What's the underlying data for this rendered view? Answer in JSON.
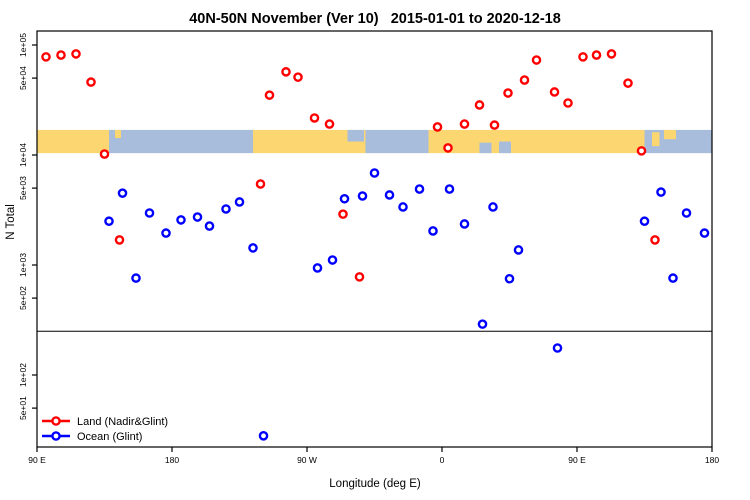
{
  "colors": {
    "land": "#FF0000",
    "ocean": "#0000FF",
    "map_land": "#FBD671",
    "map_ocean": "#A8BCDC",
    "frame": "#000000",
    "background": "#FFFFFF"
  },
  "chart_data": {
    "type": "scatter",
    "title": "40N-50N November (Ver 10)   2015-01-01 to 2020-12-18",
    "xlabel": "Longitude (deg E)",
    "ylabel": "N Total",
    "y_scale": "log",
    "x_domain_unwrapped": [
      90,
      540
    ],
    "x_wraps_at": 360,
    "ylim": [
      22,
      134000
    ],
    "grid": false,
    "x_ticks": [
      {
        "lon": 90,
        "label": "90 E"
      },
      {
        "lon": 180,
        "label": "180"
      },
      {
        "lon": 270,
        "label": "90 W"
      },
      {
        "lon": 360,
        "label": "0"
      },
      {
        "lon": 450,
        "label": "90 E"
      },
      {
        "lon": 540,
        "label": "180"
      }
    ],
    "y_ticks": [
      {
        "value": 100000,
        "label": "1e+05"
      },
      {
        "value": 50000,
        "label": "5e+04"
      },
      {
        "value": 10000,
        "label": "1e+04"
      },
      {
        "value": 5000,
        "label": "5e+03"
      },
      {
        "value": 1000,
        "label": "1e+03"
      },
      {
        "value": 500,
        "label": "5e+02"
      },
      {
        "value": 100,
        "label": "1e+02"
      },
      {
        "value": 50,
        "label": "5e+01"
      }
    ],
    "divider_value": 250,
    "map_band": {
      "top_n": 16900,
      "bottom_n": 10400,
      "segments": [
        {
          "t": "land",
          "a": 90,
          "b": 138
        },
        {
          "t": "ocean",
          "a": 138,
          "b": 234
        },
        {
          "t": "land",
          "a": 234,
          "b": 309
        },
        {
          "t": "ocean",
          "a": 309,
          "b": 351
        },
        {
          "t": "land",
          "a": 351,
          "b": 495
        },
        {
          "t": "ocean",
          "a": 495,
          "b": 540
        }
      ],
      "patches": [
        {
          "t": "land",
          "a": 142,
          "b": 146,
          "y0": 0,
          "y1": 0.35
        },
        {
          "t": "ocean",
          "a": 297,
          "b": 308,
          "y0": 0,
          "y1": 0.5
        },
        {
          "t": "ocean",
          "a": 385,
          "b": 393,
          "y0": 0.55,
          "y1": 1
        },
        {
          "t": "ocean",
          "a": 398,
          "b": 406,
          "y0": 0.5,
          "y1": 1
        },
        {
          "t": "land",
          "a": 500,
          "b": 505,
          "y0": 0.1,
          "y1": 0.7
        },
        {
          "t": "land",
          "a": 508,
          "b": 516,
          "y0": 0,
          "y1": 0.4
        }
      ]
    },
    "series": [
      {
        "name": "Land (Nadir&Glint)",
        "color_key": "land",
        "points": [
          [
            96,
            78000
          ],
          [
            106,
            81000
          ],
          [
            116,
            83000
          ],
          [
            126,
            46000
          ],
          [
            135,
            10200
          ],
          [
            145,
            1690
          ],
          [
            239,
            5450
          ],
          [
            245,
            35000
          ],
          [
            256,
            57000
          ],
          [
            264,
            51000
          ],
          [
            275,
            21700
          ],
          [
            285,
            19100
          ],
          [
            294,
            2900
          ],
          [
            305,
            780
          ],
          [
            357,
            18000
          ],
          [
            364,
            11600
          ],
          [
            375,
            19100
          ],
          [
            385,
            28500
          ],
          [
            395,
            18700
          ],
          [
            404,
            36600
          ],
          [
            415,
            48000
          ],
          [
            423,
            73000
          ],
          [
            435,
            37400
          ],
          [
            444,
            29700
          ],
          [
            454,
            78000
          ],
          [
            463,
            81000
          ],
          [
            473,
            83000
          ],
          [
            484,
            45000
          ],
          [
            493,
            10900
          ],
          [
            502,
            1690
          ]
        ]
      },
      {
        "name": "Ocean (Glint)",
        "color_key": "ocean",
        "points": [
          [
            138,
            2500
          ],
          [
            147,
            4500
          ],
          [
            156,
            760
          ],
          [
            165,
            2970
          ],
          [
            176,
            1950
          ],
          [
            186,
            2570
          ],
          [
            197,
            2730
          ],
          [
            205,
            2260
          ],
          [
            216,
            3230
          ],
          [
            225,
            3740
          ],
          [
            234,
            1430
          ],
          [
            241,
            28
          ],
          [
            277,
            940
          ],
          [
            287,
            1110
          ],
          [
            295,
            4000
          ],
          [
            307,
            4240
          ],
          [
            315,
            6860
          ],
          [
            325,
            4330
          ],
          [
            334,
            3370
          ],
          [
            345,
            4900
          ],
          [
            354,
            2040
          ],
          [
            365,
            4900
          ],
          [
            375,
            2360
          ],
          [
            387,
            290
          ],
          [
            394,
            3370
          ],
          [
            405,
            750
          ],
          [
            411,
            1370
          ],
          [
            437,
            176
          ],
          [
            495,
            2500
          ],
          [
            506,
            4600
          ],
          [
            514,
            760
          ],
          [
            523,
            2970
          ],
          [
            535,
            1950
          ]
        ]
      }
    ],
    "legend": {
      "position": "bottom-left",
      "items": [
        "Land (Nadir&Glint)",
        "Ocean (Glint)"
      ]
    }
  }
}
